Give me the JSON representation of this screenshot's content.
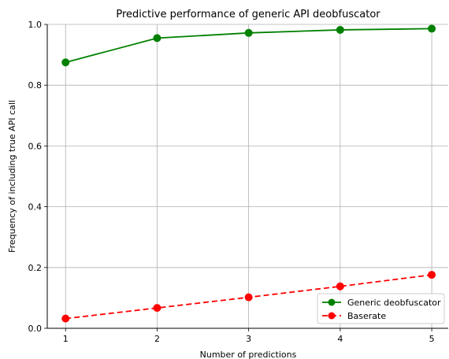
{
  "chart_data": {
    "type": "line",
    "title": "Predictive performance of generic API deobfuscator",
    "xlabel": "Number of predictions",
    "ylabel": "Frequency of including true API call",
    "x": [
      1,
      2,
      3,
      4,
      5
    ],
    "x_tick_labels": [
      "1",
      "2",
      "3",
      "4",
      "5"
    ],
    "xlim": [
      0.8,
      5.18
    ],
    "ylim": [
      0.0,
      1.0
    ],
    "y_ticks": [
      0.0,
      0.2,
      0.4,
      0.6,
      0.8,
      1.0
    ],
    "y_tick_labels": [
      "0.0",
      "0.2",
      "0.4",
      "0.6",
      "0.8",
      "1.0"
    ],
    "grid": true,
    "legend_position": "lower-right",
    "series": [
      {
        "name": "Generic deobfuscator",
        "values": [
          0.875,
          0.955,
          0.972,
          0.982,
          0.986
        ],
        "color": "#008000",
        "line_style": "solid",
        "marker": "circle"
      },
      {
        "name": "Baserate",
        "values": [
          0.032,
          0.067,
          0.102,
          0.138,
          0.176
        ],
        "color": "#ff0000",
        "line_style": "dashed",
        "marker": "circle"
      }
    ]
  }
}
